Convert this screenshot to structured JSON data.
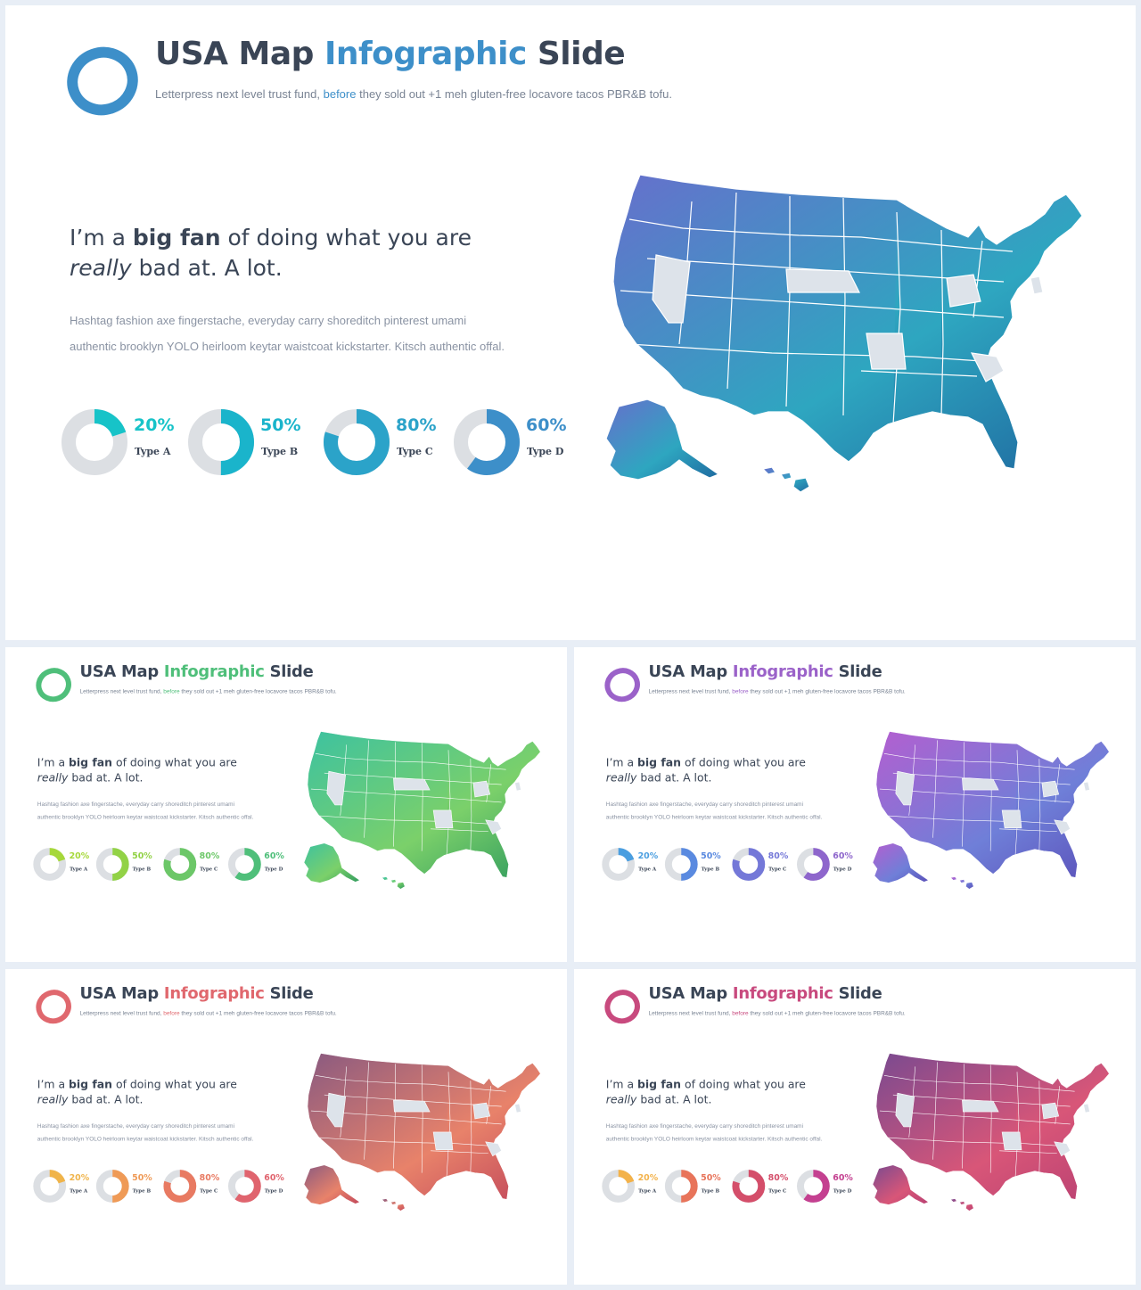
{
  "slides": [
    {
      "id": "main",
      "title_part1": "USA Map",
      "title_part2": "Infographic",
      "title_part3": "Slide",
      "subtitle_part1": "Letterpress next level trust fund,",
      "subtitle_part2": "before",
      "subtitle_part3": "they sold out +1 meh gluten-free locavore tacos PBR&B tofu.",
      "headline_part1": "I’m a",
      "headline_bold": "big fan",
      "headline_part2": "of doing what you are",
      "headline_italic": "really",
      "headline_part3": "bad at. A lot.",
      "paragraph": "Hashtag fashion axe fingerstache, everyday carry shoreditch pinterest umami authentic brooklyn YOLO heirloom keytar waistcoat kickstarter. Kitsch authentic offal.",
      "accent_color": "#3d8fc9",
      "map_colors": [
        "#6670cc",
        "#2ea6c0",
        "#1f6aa0"
      ],
      "donuts": [
        {
          "value": 20,
          "percent_text": "20%",
          "label": "Type A",
          "color": "#17c3c8"
        },
        {
          "value": 50,
          "percent_text": "50%",
          "label": "Type B",
          "color": "#1ab4cb"
        },
        {
          "value": 80,
          "percent_text": "80%",
          "label": "Type C",
          "color": "#2ba3c9"
        },
        {
          "value": 60,
          "percent_text": "60%",
          "label": "Type D",
          "color": "#3d8fc9"
        }
      ]
    },
    {
      "id": "green",
      "title_part1": "USA Map",
      "title_part2": "Infographic",
      "title_part3": "Slide",
      "subtitle_part1": "Letterpress next level trust fund,",
      "subtitle_part2": "before",
      "subtitle_part3": "they sold out +1 meh gluten-free locavore tacos PBR&B tofu.",
      "headline_part1": "I’m a",
      "headline_bold": "big fan",
      "headline_part2": "of doing what you are",
      "headline_italic": "really",
      "headline_part3": "bad at. A lot.",
      "paragraph": "Hashtag fashion axe fingerstache, everyday carry shoreditch pinterest umami authentic brooklyn YOLO heirloom keytar waistcoat kickstarter. Kitsch authentic offal.",
      "accent_color": "#4fbf7a",
      "map_colors": [
        "#3dc2a0",
        "#7bd06a",
        "#2f9a5e"
      ],
      "donuts": [
        {
          "value": 20,
          "percent_text": "20%",
          "label": "Type A",
          "color": "#a6d83a"
        },
        {
          "value": 50,
          "percent_text": "50%",
          "label": "Type B",
          "color": "#92d246"
        },
        {
          "value": 80,
          "percent_text": "80%",
          "label": "Type C",
          "color": "#6cc768"
        },
        {
          "value": 60,
          "percent_text": "60%",
          "label": "Type D",
          "color": "#4fbf7a"
        }
      ]
    },
    {
      "id": "purple",
      "title_part1": "USA Map",
      "title_part2": "Infographic",
      "title_part3": "Slide",
      "subtitle_part1": "Letterpress next level trust fund,",
      "subtitle_part2": "before",
      "subtitle_part3": "they sold out +1 meh gluten-free locavore tacos PBR&B tofu.",
      "headline_part1": "I’m a",
      "headline_bold": "big fan",
      "headline_part2": "of doing what you are",
      "headline_italic": "really",
      "headline_part3": "bad at. A lot.",
      "paragraph": "Hashtag fashion axe fingerstache, everyday carry shoreditch pinterest umami authentic brooklyn YOLO heirloom keytar waistcoat kickstarter. Kitsch authentic offal.",
      "accent_color": "#9b62c9",
      "map_colors": [
        "#b35fd0",
        "#6f7fd8",
        "#5a4fb8"
      ],
      "donuts": [
        {
          "value": 20,
          "percent_text": "20%",
          "label": "Type A",
          "color": "#4a9ee0"
        },
        {
          "value": 50,
          "percent_text": "50%",
          "label": "Type B",
          "color": "#5a8ae0"
        },
        {
          "value": 80,
          "percent_text": "80%",
          "label": "Type C",
          "color": "#7478d8"
        },
        {
          "value": 60,
          "percent_text": "60%",
          "label": "Type D",
          "color": "#8e66cc"
        }
      ]
    },
    {
      "id": "red",
      "title_part1": "USA Map",
      "title_part2": "Infographic",
      "title_part3": "Slide",
      "subtitle_part1": "Letterpress next level trust fund,",
      "subtitle_part2": "before",
      "subtitle_part3": "they sold out +1 meh gluten-free locavore tacos PBR&B tofu.",
      "headline_part1": "I’m a",
      "headline_bold": "big fan",
      "headline_part2": "of doing what you are",
      "headline_italic": "really",
      "headline_part3": "bad at. A lot.",
      "paragraph": "Hashtag fashion axe fingerstache, everyday carry shoreditch pinterest umami authentic brooklyn YOLO heirloom keytar waistcoat kickstarter. Kitsch authentic offal.",
      "accent_color": "#e0686e",
      "map_colors": [
        "#8a5a80",
        "#e8826a",
        "#c0465a"
      ],
      "donuts": [
        {
          "value": 20,
          "percent_text": "20%",
          "label": "Type A",
          "color": "#f0b44a"
        },
        {
          "value": 50,
          "percent_text": "50%",
          "label": "Type B",
          "color": "#ef9a56"
        },
        {
          "value": 80,
          "percent_text": "80%",
          "label": "Type C",
          "color": "#e87a62"
        },
        {
          "value": 60,
          "percent_text": "60%",
          "label": "Type D",
          "color": "#e0646e"
        }
      ]
    },
    {
      "id": "magenta",
      "title_part1": "USA Map",
      "title_part2": "Infographic",
      "title_part3": "Slide",
      "subtitle_part1": "Letterpress next level trust fund,",
      "subtitle_part2": "before",
      "subtitle_part3": "they sold out +1 meh gluten-free locavore tacos PBR&B tofu.",
      "headline_part1": "I’m a",
      "headline_bold": "big fan",
      "headline_part2": "of doing what you are",
      "headline_italic": "really",
      "headline_part3": "bad at. A lot.",
      "paragraph": "Hashtag fashion axe fingerstache, everyday carry shoreditch pinterest umami authentic brooklyn YOLO heirloom keytar waistcoat kickstarter. Kitsch authentic offal.",
      "accent_color": "#c84a7e",
      "map_colors": [
        "#7a4a90",
        "#d85678",
        "#b84072"
      ],
      "donuts": [
        {
          "value": 20,
          "percent_text": "20%",
          "label": "Type A",
          "color": "#f3b24a"
        },
        {
          "value": 50,
          "percent_text": "50%",
          "label": "Type B",
          "color": "#e8745a"
        },
        {
          "value": 80,
          "percent_text": "80%",
          "label": "Type C",
          "color": "#d44e6a"
        },
        {
          "value": 60,
          "percent_text": "60%",
          "label": "Type D",
          "color": "#c44090"
        }
      ]
    }
  ]
}
